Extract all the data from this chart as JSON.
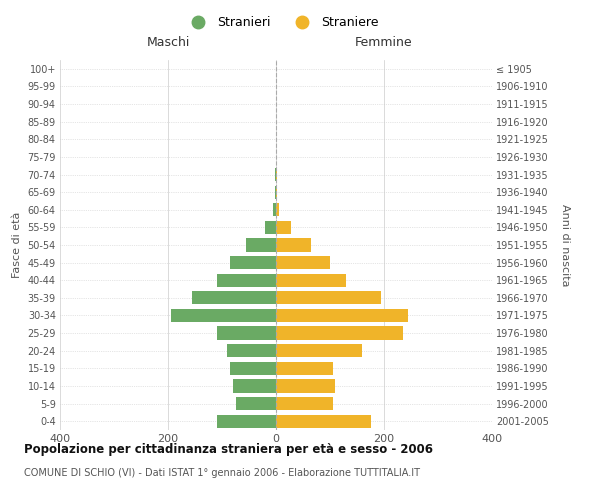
{
  "age_groups": [
    "0-4",
    "5-9",
    "10-14",
    "15-19",
    "20-24",
    "25-29",
    "30-34",
    "35-39",
    "40-44",
    "45-49",
    "50-54",
    "55-59",
    "60-64",
    "65-69",
    "70-74",
    "75-79",
    "80-84",
    "85-89",
    "90-94",
    "95-99",
    "100+"
  ],
  "birth_years": [
    "2001-2005",
    "1996-2000",
    "1991-1995",
    "1986-1990",
    "1981-1985",
    "1976-1980",
    "1971-1975",
    "1966-1970",
    "1961-1965",
    "1956-1960",
    "1951-1955",
    "1946-1950",
    "1941-1945",
    "1936-1940",
    "1931-1935",
    "1926-1930",
    "1921-1925",
    "1916-1920",
    "1911-1915",
    "1906-1910",
    "≤ 1905"
  ],
  "males": [
    110,
    75,
    80,
    85,
    90,
    110,
    195,
    155,
    110,
    85,
    55,
    20,
    5,
    2,
    2,
    0,
    0,
    0,
    0,
    0,
    0
  ],
  "females": [
    175,
    105,
    110,
    105,
    160,
    235,
    245,
    195,
    130,
    100,
    65,
    28,
    5,
    2,
    1,
    0,
    0,
    0,
    0,
    0,
    0
  ],
  "male_color": "#6aaa64",
  "female_color": "#f0b429",
  "title": "Popolazione per cittadinanza straniera per età e sesso - 2006",
  "subtitle": "COMUNE DI SCHIO (VI) - Dati ISTAT 1° gennaio 2006 - Elaborazione TUTTITALIA.IT",
  "xlabel_left": "Maschi",
  "xlabel_right": "Femmine",
  "ylabel_left": "Fasce di età",
  "ylabel_right": "Anni di nascita",
  "legend_male": "Stranieri",
  "legend_female": "Straniere",
  "xlim": 400,
  "background_color": "#ffffff",
  "grid_color": "#cccccc"
}
